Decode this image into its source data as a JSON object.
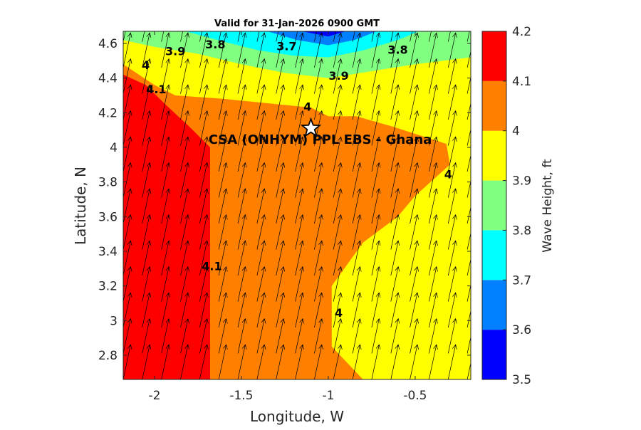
{
  "chart_data": {
    "type": "contour",
    "title": "Valid for 31-Jan-2026 0900 GMT",
    "xlabel": "Longitude, W",
    "ylabel": "Latitude, N",
    "xlim": [
      -2.18,
      -0.18
    ],
    "ylim": [
      2.66,
      4.67
    ],
    "xticks": [
      -2,
      -1.5,
      -1,
      -0.5
    ],
    "xtick_labels": [
      "-2",
      "-1.5",
      "-1",
      "-0.5"
    ],
    "yticks": [
      2.8,
      3.0,
      3.2,
      3.4,
      3.6,
      3.8,
      4.0,
      4.2,
      4.4,
      4.6
    ],
    "ytick_labels": [
      "2.8",
      "3",
      "3.2",
      "3.4",
      "3.6",
      "3.8",
      "4",
      "4.2",
      "4.4",
      "4.6"
    ],
    "colorbar": {
      "label": "Wave Height, ft",
      "levels": [
        3.5,
        3.6,
        3.7,
        3.8,
        3.9,
        4.0,
        4.1,
        4.2
      ],
      "tick_labels": [
        "3.5",
        "3.6",
        "3.7",
        "3.8",
        "3.9",
        "4",
        "4.1",
        "4.2"
      ],
      "colors": [
        "#0000ff",
        "#0080ff",
        "#00ffff",
        "#80ff80",
        "#ffff00",
        "#ff8000",
        "#ff0000"
      ]
    },
    "regions": [
      {
        "level_range": [
          3.9,
          4.0
        ],
        "color": "#ffff00",
        "polygon": [
          [
            -2.18,
            2.66
          ],
          [
            -0.18,
            2.66
          ],
          [
            -0.18,
            4.67
          ],
          [
            -2.18,
            4.67
          ]
        ]
      },
      {
        "level_range": [
          4.0,
          4.1
        ],
        "color": "#ff8000",
        "polygon": [
          [
            -2.18,
            2.66
          ],
          [
            -0.8,
            2.66
          ],
          [
            -0.98,
            2.85
          ],
          [
            -0.98,
            3.2
          ],
          [
            -0.8,
            3.45
          ],
          [
            -0.6,
            3.6
          ],
          [
            -0.5,
            3.72
          ],
          [
            -0.3,
            3.9
          ],
          [
            -0.32,
            4.02
          ],
          [
            -0.63,
            4.12
          ],
          [
            -0.84,
            4.18
          ],
          [
            -1.0,
            4.18
          ],
          [
            -1.1,
            4.23
          ],
          [
            -1.3,
            4.25
          ],
          [
            -1.6,
            4.28
          ],
          [
            -1.88,
            4.3
          ],
          [
            -2.0,
            4.36
          ],
          [
            -2.18,
            4.48
          ]
        ]
      },
      {
        "level_range": [
          4.1,
          4.2
        ],
        "color": "#ff0000",
        "polygon": [
          [
            -2.18,
            2.66
          ],
          [
            -1.68,
            2.66
          ],
          [
            -1.68,
            4.0
          ],
          [
            -1.8,
            4.12
          ],
          [
            -1.95,
            4.26
          ],
          [
            -2.05,
            4.36
          ],
          [
            -2.18,
            4.42
          ]
        ]
      },
      {
        "level_range": [
          3.8,
          3.9
        ],
        "color": "#80ff80",
        "polygon": [
          [
            -2.18,
            4.67
          ],
          [
            -2.18,
            4.62
          ],
          [
            -2.0,
            4.58
          ],
          [
            -1.75,
            4.54
          ],
          [
            -1.5,
            4.48
          ],
          [
            -1.25,
            4.43
          ],
          [
            -1.0,
            4.4
          ],
          [
            -0.75,
            4.44
          ],
          [
            -0.5,
            4.48
          ],
          [
            -0.18,
            4.52
          ],
          [
            -0.18,
            4.67
          ]
        ]
      },
      {
        "level_range": [
          3.7,
          3.8
        ],
        "color": "#00ffff",
        "polygon": [
          [
            -1.82,
            4.67
          ],
          [
            -1.6,
            4.61
          ],
          [
            -1.4,
            4.56
          ],
          [
            -1.2,
            4.53
          ],
          [
            -1.0,
            4.52
          ],
          [
            -0.8,
            4.56
          ],
          [
            -0.6,
            4.62
          ],
          [
            -0.48,
            4.67
          ]
        ]
      },
      {
        "level_range": [
          3.6,
          3.7
        ],
        "color": "#0080ff",
        "polygon": [
          [
            -1.35,
            4.67
          ],
          [
            -1.18,
            4.62
          ],
          [
            -1.0,
            4.59
          ],
          [
            -0.85,
            4.62
          ],
          [
            -0.72,
            4.67
          ]
        ]
      },
      {
        "level_range": [
          3.5,
          3.6
        ],
        "color": "#0000ff",
        "polygon": [
          [
            -1.15,
            4.67
          ],
          [
            -1.0,
            4.64
          ],
          [
            -0.9,
            4.67
          ]
        ]
      }
    ],
    "contour_labels": [
      {
        "text": "3.9",
        "lon": -1.88,
        "lat": 4.55
      },
      {
        "text": "3.8",
        "lon": -1.65,
        "lat": 4.59
      },
      {
        "text": "3.7",
        "lon": -1.24,
        "lat": 4.58
      },
      {
        "text": "3.8",
        "lon": -0.6,
        "lat": 4.56
      },
      {
        "text": "3.9",
        "lon": -0.94,
        "lat": 4.41
      },
      {
        "text": "4",
        "lon": -2.05,
        "lat": 4.47
      },
      {
        "text": "4.1",
        "lon": -1.99,
        "lat": 4.33
      },
      {
        "text": "4",
        "lon": -1.12,
        "lat": 4.23
      },
      {
        "text": "4",
        "lon": -0.31,
        "lat": 3.84
      },
      {
        "text": "4.1",
        "lon": -1.67,
        "lat": 3.31
      },
      {
        "text": "4",
        "lon": -0.94,
        "lat": 3.04
      }
    ],
    "site": {
      "name": "CSA (ONHYM) PPL EBS  - Ghana",
      "lon": -1.1,
      "lat": 4.11
    },
    "vector_field": {
      "description": "wave direction arrows, pointing north-northeast",
      "lon_values": [
        -2.18,
        -2.07,
        -1.96,
        -1.85,
        -1.74,
        -1.63,
        -1.52,
        -1.41,
        -1.3,
        -1.19,
        -1.08,
        -0.97,
        -0.86,
        -0.75,
        -0.64,
        -0.53,
        -0.42,
        -0.31,
        -0.2
      ],
      "lat_values": [
        2.66,
        2.81,
        2.96,
        3.11,
        3.26,
        3.41,
        3.56,
        3.71,
        3.86,
        4.01,
        4.16,
        4.31,
        4.46,
        4.61
      ],
      "direction_deg": 12
    }
  }
}
